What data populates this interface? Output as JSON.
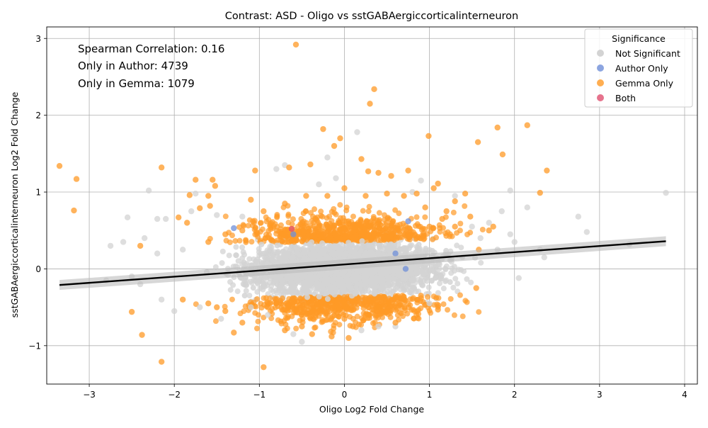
{
  "chart_data": {
    "type": "scatter",
    "title": "Contrast: ASD - Oligo vs sstGABAergiccorticalinterneuron",
    "xlabel": "Oligo Log2 Fold Change",
    "ylabel": "sstGABAergiccorticalinterneuron Log2 Fold Change",
    "xlim": [
      -3.5,
      4.15
    ],
    "ylim": [
      -1.5,
      3.15
    ],
    "x_ticks": [
      -3,
      -2,
      -1,
      0,
      1,
      2,
      3,
      4
    ],
    "y_ticks": [
      -1,
      0,
      1,
      2,
      3
    ],
    "x_tick_labels": [
      "−3",
      "−2",
      "−1",
      "0",
      "1",
      "2",
      "3",
      "4"
    ],
    "y_tick_labels": [
      "−1",
      "0",
      "1",
      "2",
      "3"
    ],
    "grid": true,
    "annotations": [
      "Spearman Correlation: 0.16",
      "Only in Author: 4739",
      "Only in Gemma: 1079"
    ],
    "legend": {
      "title": "Significance",
      "placement": "top-right",
      "entries": [
        {
          "label": "Not Significant",
          "color": "#d3d3d3"
        },
        {
          "label": "Author Only",
          "color": "#6f8fd8"
        },
        {
          "label": "Gemma Only",
          "color": "#ff9a26"
        },
        {
          "label": "Both",
          "color": "#e05070"
        }
      ]
    },
    "regression_line": {
      "x": [
        -3.35,
        3.78
      ],
      "y": [
        -0.21,
        0.36
      ],
      "color": "#000000"
    },
    "series": [
      {
        "name": "Not Significant",
        "color": "#d3d3d3",
        "points": [
          [
            -2.75,
            0.3
          ],
          [
            -2.55,
            0.67
          ],
          [
            -2.3,
            1.02
          ],
          [
            -2.4,
            -0.2
          ],
          [
            -2.2,
            0.65
          ],
          [
            -2.1,
            0.65
          ],
          [
            -2.15,
            -0.4
          ],
          [
            -2.0,
            -0.55
          ],
          [
            -1.9,
            0.25
          ],
          [
            -1.8,
            0.75
          ],
          [
            -1.75,
            0.98
          ],
          [
            -1.7,
            -0.5
          ],
          [
            -1.5,
            0.7
          ],
          [
            -1.45,
            -0.65
          ],
          [
            -1.2,
            0.68
          ],
          [
            -1.1,
            -0.5
          ],
          [
            -0.9,
            -0.6
          ],
          [
            -0.8,
            1.3
          ],
          [
            -0.7,
            1.35
          ],
          [
            -0.6,
            -0.85
          ],
          [
            -0.5,
            -0.95
          ],
          [
            -0.3,
            1.1
          ],
          [
            -0.2,
            1.45
          ],
          [
            -0.1,
            1.18
          ],
          [
            0.15,
            1.78
          ],
          [
            0.2,
            -0.8
          ],
          [
            0.4,
            -0.75
          ],
          [
            0.6,
            -0.75
          ],
          [
            0.8,
            1.0
          ],
          [
            0.9,
            1.15
          ],
          [
            1.0,
            -0.45
          ],
          [
            1.3,
            0.95
          ],
          [
            1.5,
            0.55
          ],
          [
            1.6,
            0.4
          ],
          [
            1.7,
            0.6
          ],
          [
            1.8,
            0.25
          ],
          [
            1.85,
            0.75
          ],
          [
            1.95,
            1.02
          ],
          [
            1.95,
            0.45
          ],
          [
            2.0,
            0.35
          ],
          [
            2.05,
            -0.12
          ],
          [
            2.15,
            0.8
          ],
          [
            2.3,
            0.25
          ],
          [
            2.35,
            0.15
          ],
          [
            2.75,
            0.68
          ],
          [
            2.85,
            0.48
          ],
          [
            3.35,
            0.32
          ],
          [
            3.78,
            0.99
          ],
          [
            -2.6,
            0.35
          ],
          [
            -2.35,
            0.4
          ],
          [
            -2.2,
            0.2
          ],
          [
            -2.5,
            -0.1
          ],
          [
            -2.8,
            -0.15
          ]
        ]
      },
      {
        "name": "Author Only",
        "color": "#6f8fd8",
        "points": [
          [
            -1.3,
            0.53
          ],
          [
            -0.6,
            0.45
          ],
          [
            0.6,
            0.2
          ],
          [
            0.75,
            0.62
          ],
          [
            0.72,
            0.0
          ]
        ]
      },
      {
        "name": "Gemma Only",
        "color": "#ff9a26",
        "points": [
          [
            -3.35,
            1.34
          ],
          [
            -3.15,
            1.17
          ],
          [
            -3.18,
            0.76
          ],
          [
            -2.5,
            -0.56
          ],
          [
            -2.4,
            0.3
          ],
          [
            -2.38,
            -0.86
          ],
          [
            -2.15,
            1.32
          ],
          [
            -2.15,
            -1.21
          ],
          [
            -1.95,
            0.67
          ],
          [
            -1.85,
            0.6
          ],
          [
            -1.82,
            0.96
          ],
          [
            -1.75,
            1.16
          ],
          [
            -1.7,
            0.79
          ],
          [
            -1.6,
            0.95
          ],
          [
            -1.58,
            0.82
          ],
          [
            -1.55,
            1.16
          ],
          [
            -1.52,
            1.08
          ],
          [
            -1.3,
            -0.83
          ],
          [
            -1.2,
            -0.7
          ],
          [
            -1.05,
            1.28
          ],
          [
            -0.95,
            -1.28
          ],
          [
            -0.65,
            1.32
          ],
          [
            -0.57,
            2.92
          ],
          [
            -0.4,
            1.36
          ],
          [
            -0.38,
            -0.85
          ],
          [
            -0.25,
            1.82
          ],
          [
            -0.15,
            -0.88
          ],
          [
            -0.12,
            1.6
          ],
          [
            -0.05,
            1.7
          ],
          [
            0.05,
            -0.9
          ],
          [
            0.2,
            1.43
          ],
          [
            0.28,
            1.27
          ],
          [
            0.3,
            2.15
          ],
          [
            0.35,
            2.34
          ],
          [
            0.4,
            1.25
          ],
          [
            0.55,
            1.21
          ],
          [
            0.6,
            -0.7
          ],
          [
            0.75,
            1.28
          ],
          [
            0.85,
            0.98
          ],
          [
            0.99,
            1.73
          ],
          [
            1.05,
            1.05
          ],
          [
            1.1,
            1.11
          ],
          [
            1.1,
            -0.53
          ],
          [
            1.2,
            0.75
          ],
          [
            1.3,
            0.88
          ],
          [
            1.42,
            0.98
          ],
          [
            1.48,
            0.68
          ],
          [
            1.55,
            -0.25
          ],
          [
            1.57,
            1.65
          ],
          [
            1.58,
            0.25
          ],
          [
            1.7,
            0.5
          ],
          [
            1.75,
            0.55
          ],
          [
            1.8,
            1.84
          ],
          [
            1.86,
            1.49
          ],
          [
            2.15,
            1.87
          ],
          [
            2.3,
            0.99
          ],
          [
            2.38,
            1.28
          ],
          [
            -1.9,
            -0.4
          ],
          [
            -1.6,
            -0.45
          ],
          [
            -1.5,
            -0.5
          ],
          [
            -1.4,
            -0.55
          ],
          [
            -1.1,
            0.9
          ],
          [
            -0.9,
            -0.5
          ],
          [
            -0.8,
            -0.45
          ],
          [
            -0.7,
            -0.8
          ],
          [
            -0.5,
            -0.75
          ],
          [
            -0.3,
            -0.55
          ],
          [
            -0.2,
            -0.6
          ],
          [
            0.0,
            -0.65
          ],
          [
            0.1,
            -0.75
          ],
          [
            0.25,
            -0.6
          ],
          [
            0.4,
            -0.5
          ],
          [
            0.5,
            -0.45
          ],
          [
            0.7,
            -0.4
          ],
          [
            0.9,
            -0.35
          ],
          [
            -1.2,
            0.5
          ],
          [
            -0.95,
            0.75
          ],
          [
            -0.7,
            0.85
          ],
          [
            -0.45,
            0.95
          ],
          [
            -0.2,
            0.95
          ],
          [
            0.0,
            1.05
          ],
          [
            0.25,
            0.95
          ],
          [
            0.5,
            0.98
          ],
          [
            0.7,
            0.95
          ],
          [
            0.95,
            0.8
          ],
          [
            1.15,
            0.65
          ],
          [
            1.3,
            0.55
          ],
          [
            1.0,
            0.55
          ],
          [
            -1.4,
            0.45
          ],
          [
            -1.6,
            0.35
          ]
        ]
      },
      {
        "name": "Both",
        "color": "#e05070",
        "points": [
          [
            -0.62,
            0.52
          ]
        ]
      }
    ]
  }
}
